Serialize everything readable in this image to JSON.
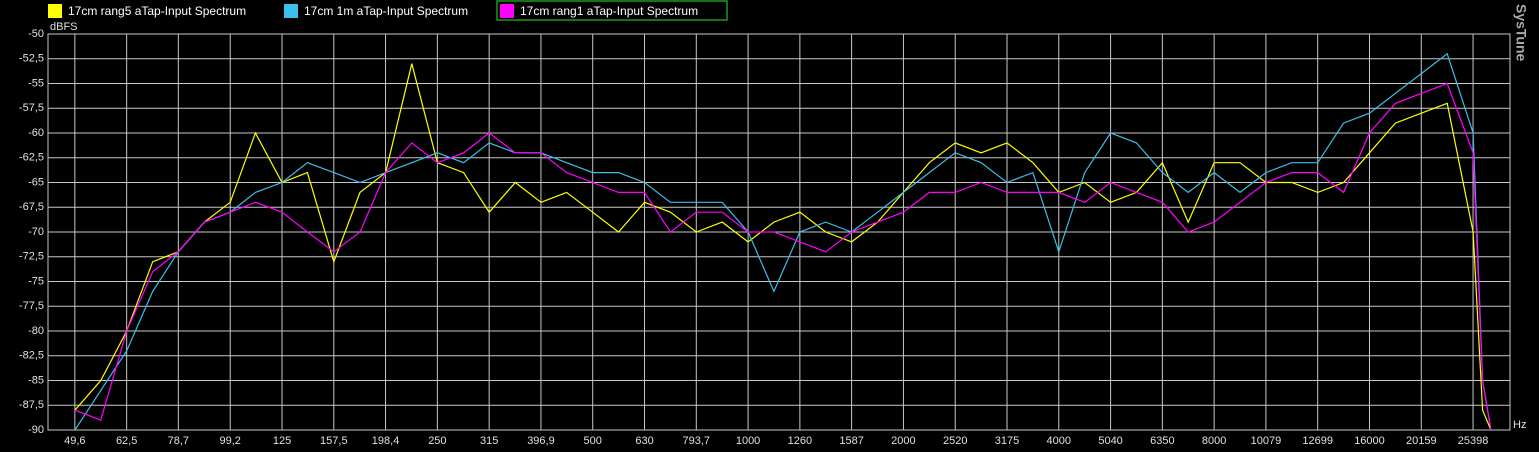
{
  "chart_data": {
    "type": "line",
    "brand": "SysTune",
    "ylabel": "dBFS",
    "xlabel": "Hz",
    "log_x": true,
    "grid": true,
    "legend": "top",
    "highlighted_series": 2,
    "xlim": [
      44,
      29950
    ],
    "ylim": [
      -90,
      -50
    ],
    "xticks": [
      {
        "value": 49.6,
        "label": "49,6"
      },
      {
        "value": 62.5,
        "label": "62,5"
      },
      {
        "value": 78.7,
        "label": "78,7"
      },
      {
        "value": 99.2,
        "label": "99,2"
      },
      125,
      {
        "value": 157.5,
        "label": "157,5"
      },
      {
        "value": 198.4,
        "label": "198,4"
      },
      250,
      315,
      {
        "value": 396.9,
        "label": "396,9"
      },
      500,
      630,
      {
        "value": 793.7,
        "label": "793,7"
      },
      1000,
      1260,
      1587,
      2000,
      2520,
      3175,
      4000,
      5040,
      6350,
      8000,
      10079,
      12699,
      16000,
      20159,
      25398
    ],
    "yticks": [
      -50,
      {
        "value": -52.5,
        "label": "-52,5"
      },
      -55,
      {
        "value": -57.5,
        "label": "-57,5"
      },
      -60,
      {
        "value": -62.5,
        "label": "-62,5"
      },
      -65,
      {
        "value": -67.5,
        "label": "-67,5"
      },
      -70,
      {
        "value": -72.5,
        "label": "-72,5"
      },
      -75,
      {
        "value": -77.5,
        "label": "-77,5"
      },
      -80,
      {
        "value": -82.5,
        "label": "-82,5"
      },
      -85,
      {
        "value": -87.5,
        "label": "-87,5"
      },
      -90
    ],
    "x": [
      49.6,
      55.7,
      62.5,
      70.2,
      78.7,
      88.4,
      99.2,
      111,
      125,
      140,
      157.5,
      177,
      198.4,
      223,
      250,
      281,
      315,
      354,
      396.9,
      445,
      500,
      561,
      630,
      707,
      793.7,
      891,
      1000,
      1122,
      1260,
      1414,
      1587,
      1782,
      2000,
      2245,
      2520,
      2828,
      3175,
      3564,
      4000,
      4490,
      5040,
      5657,
      6350,
      7127,
      8000,
      8980,
      10079,
      11314,
      12699,
      14254,
      16000,
      17959,
      20159,
      22627,
      25398,
      26500,
      27500
    ],
    "series": [
      {
        "name": "17cm rang5 aTap-Input Spectrum",
        "color": "#ffff00",
        "values": [
          -88,
          -85,
          -80,
          -73,
          -72,
          -69,
          -67,
          -60,
          -65,
          -64,
          -73,
          -66,
          -64,
          -53,
          -63,
          -64,
          -68,
          -65,
          -67,
          -66,
          -68,
          -70,
          -67,
          -68,
          -70,
          -69,
          -71,
          -69,
          -68,
          -70,
          -71,
          -69,
          -66,
          -63,
          -61,
          -62,
          -61,
          -63,
          -66,
          -65,
          -67,
          -66,
          -63,
          -69,
          -63,
          -63,
          -65,
          -65,
          -66,
          -65,
          -62,
          -59,
          -58,
          -57,
          -70,
          -88,
          -90
        ]
      },
      {
        "name": "17cm 1m aTap-Input Spectrum",
        "color": "#3cbfe8",
        "values": [
          -90,
          -86,
          -82,
          -76,
          -72,
          -69,
          -68,
          -66,
          -65,
          -63,
          -64,
          -65,
          -64,
          -63,
          -62,
          -63,
          -61,
          -62,
          -62,
          -63,
          -64,
          -64,
          -65,
          -67,
          -67,
          -67,
          -70,
          -76,
          -70,
          -69,
          -70,
          -68,
          -66,
          -64,
          -62,
          -63,
          -65,
          -64,
          -72,
          -64,
          -60,
          -61,
          -64,
          -66,
          -64,
          -66,
          -64,
          -63,
          -63,
          -59,
          -58,
          -56,
          -54,
          -52,
          -60,
          -85,
          -90
        ]
      },
      {
        "name": "17cm rang1 aTap-Input Spectrum",
        "color": "#ff00ff",
        "values": [
          -88,
          -89,
          -80,
          -74,
          -72,
          -69,
          -68,
          -67,
          -68,
          -70,
          -72,
          -70,
          -64,
          -61,
          -63,
          -62,
          -60,
          -62,
          -62,
          -64,
          -65,
          -66,
          -66,
          -70,
          -68,
          -68,
          -70,
          -70,
          -71,
          -72,
          -70,
          -69,
          -68,
          -66,
          -66,
          -65,
          -66,
          -66,
          -66,
          -67,
          -65,
          -66,
          -67,
          -70,
          -69,
          -67,
          -65,
          -64,
          -64,
          -66,
          -60,
          -57,
          -56,
          -55,
          -62,
          -85,
          -90
        ]
      }
    ]
  }
}
